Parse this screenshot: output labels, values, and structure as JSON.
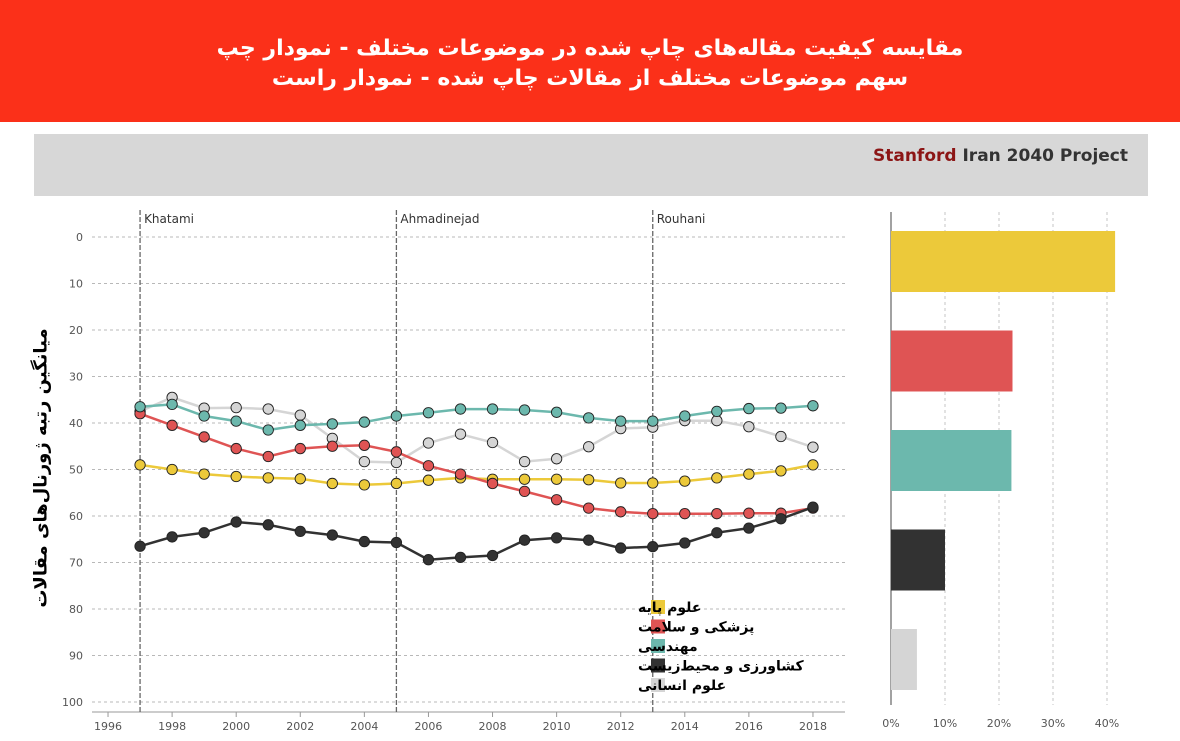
{
  "title": {
    "line1": "مقایسه کیفیت مقاله‌های چاپ شده در موضوعات مختلف - نمودار چپ",
    "line2": "سهم موضوعات مختلف از مقالات چاپ شده - نمودار راست"
  },
  "brand": {
    "part1": "Stanford",
    "part2": " Iran 2040 Project"
  },
  "chart_data": [
    {
      "type": "line",
      "ylabel": "میانگین رتبه ژورنال‌های مقالات",
      "xlabel": "",
      "xlim": [
        1995.5,
        2019
      ],
      "ylim": [
        100,
        0
      ],
      "y_inverted": true,
      "x_ticks": [
        1996,
        1998,
        2000,
        2002,
        2004,
        2006,
        2008,
        2010,
        2012,
        2014,
        2016,
        2018
      ],
      "y_ticks": [
        0,
        10,
        20,
        30,
        40,
        50,
        60,
        70,
        80,
        90,
        100
      ],
      "grid": true,
      "legend_position": "bottom-center",
      "x": [
        1997,
        1998,
        1999,
        2000,
        2001,
        2002,
        2003,
        2004,
        2005,
        2006,
        2007,
        2008,
        2009,
        2010,
        2011,
        2012,
        2013,
        2014,
        2015,
        2016,
        2017,
        2018
      ],
      "annotations": [
        {
          "label": "Khatami",
          "x": 1997
        },
        {
          "label": "Ahmadinejad",
          "x": 2005
        },
        {
          "label": "Rouhani",
          "x": 2013
        }
      ],
      "series": [
        {
          "name": "علوم پایه",
          "color": "#ecc93a",
          "values": [
            49,
            50,
            51,
            51.5,
            51.8,
            52,
            53,
            53.3,
            53,
            52.3,
            51.8,
            52.1,
            52.1,
            52.1,
            52.2,
            52.9,
            52.9,
            52.5,
            51.8,
            51,
            50.3,
            49
          ]
        },
        {
          "name": "پزشکی و سلامت",
          "color": "#df5454",
          "values": [
            38,
            40.5,
            43,
            45.5,
            47.2,
            45.5,
            45,
            44.8,
            46.2,
            49.2,
            51,
            53,
            54.7,
            56.5,
            58.3,
            59.1,
            59.5,
            59.5,
            59.5,
            59.4,
            59.4,
            58.3
          ]
        },
        {
          "name": "مهندسی",
          "color": "#6cb8ad",
          "values": [
            36.5,
            36,
            38.5,
            39.6,
            41.5,
            40.5,
            40.2,
            39.8,
            38.5,
            37.8,
            37,
            37,
            37.2,
            37.7,
            38.9,
            39.6,
            39.6,
            38.5,
            37.5,
            36.9,
            36.8,
            36.3
          ]
        },
        {
          "name": "کشاورزی و محیط‌زیست",
          "color": "#323232",
          "values": [
            66.5,
            64.5,
            63.6,
            61.3,
            61.9,
            63.3,
            64.1,
            65.5,
            65.7,
            69.4,
            68.9,
            68.5,
            65.2,
            64.7,
            65.2,
            66.9,
            66.6,
            65.8,
            63.6,
            62.6,
            60.6,
            58.1
          ]
        },
        {
          "name": "علوم انسانی",
          "color": "#d5d5d5",
          "values": [
            37.5,
            34.5,
            36.8,
            36.7,
            37,
            38.3,
            43.3,
            48.3,
            48.5,
            44.3,
            42.4,
            44.2,
            48.3,
            47.7,
            45.1,
            41.2,
            40.9,
            39.5,
            39.5,
            40.8,
            42.9,
            45.2
          ]
        }
      ]
    },
    {
      "type": "bar",
      "orientation": "horizontal",
      "x_ticks": [
        "0%",
        "10%",
        "20%",
        "30%",
        "40%"
      ],
      "xlim": [
        0,
        45
      ],
      "grid": true,
      "categories": [
        "علوم پایه",
        "پزشکی و سلامت",
        "مهندسی",
        "کشاورزی و محیط‌زیست",
        "علوم انسانی"
      ],
      "values": [
        41.5,
        22.5,
        22.3,
        10,
        4.8
      ],
      "colors": [
        "#ecc93a",
        "#df5454",
        "#6cb8ad",
        "#323232",
        "#d5d5d5"
      ]
    }
  ]
}
